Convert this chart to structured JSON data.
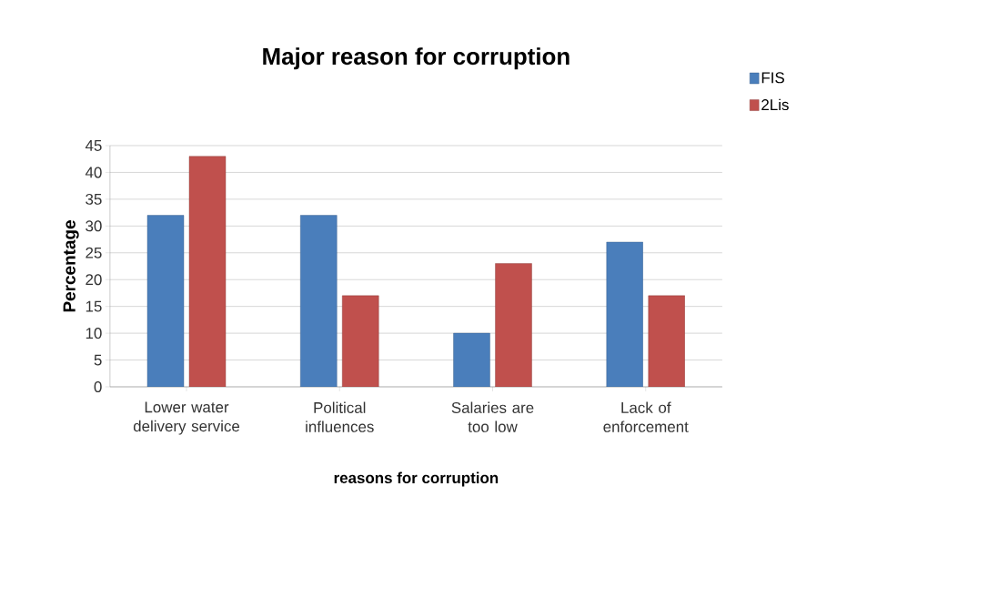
{
  "chart_data": {
    "type": "bar",
    "title": "Major reason for corruption",
    "xlabel": "reasons for corruption",
    "ylabel": "Percentage",
    "categories": [
      "Lower water delivery service",
      "Political influences",
      "Salaries are too low",
      "Lack of enforcement"
    ],
    "series": [
      {
        "name": "FIS",
        "color": "#4a7ebb",
        "values": [
          32,
          32,
          10,
          27
        ]
      },
      {
        "name": "2Lis",
        "color": "#c0504d",
        "values": [
          43,
          17,
          23,
          17
        ]
      }
    ],
    "ylim": [
      0,
      45
    ],
    "yticks": [
      0,
      5,
      10,
      15,
      20,
      25,
      30,
      35,
      40,
      45
    ],
    "grid": "y",
    "legend": "top right"
  }
}
